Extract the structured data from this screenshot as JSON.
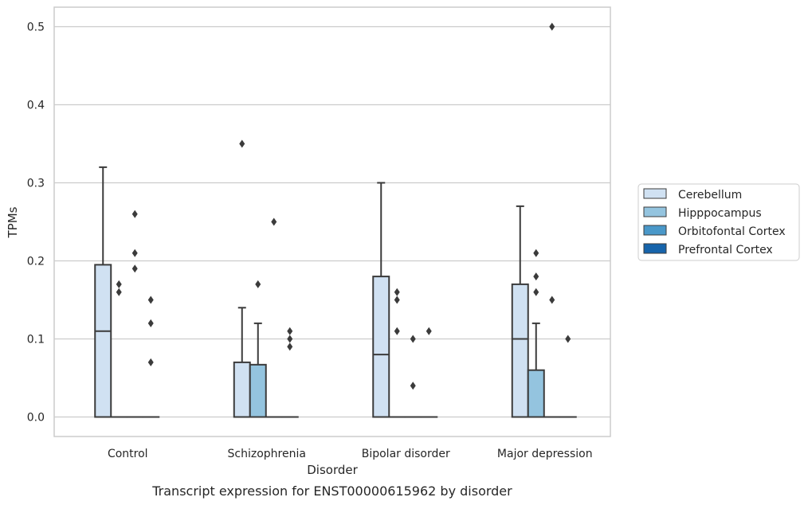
{
  "chart_data": {
    "type": "box",
    "title": "",
    "caption": "Transcript expression for ENST00000615962 by disorder",
    "xlabel": "Disorder",
    "ylabel": "TPMs",
    "ylim": [
      -0.025,
      0.525
    ],
    "yticks": [
      0.0,
      0.1,
      0.2,
      0.3,
      0.4,
      0.5
    ],
    "ytick_labels": [
      "0.0",
      "0.1",
      "0.2",
      "0.3",
      "0.4",
      "0.5"
    ],
    "grid": "horizontal",
    "legend_position": "right",
    "categories": [
      "Control",
      "Schizophrenia",
      "Bipolar disorder",
      "Major depression"
    ],
    "series": [
      {
        "name": "Cerebellum",
        "color": "#d0e1f2",
        "boxes": [
          {
            "q1": 0.0,
            "median": 0.11,
            "q3": 0.195,
            "whislo": 0.0,
            "whishi": 0.32,
            "fliers": []
          },
          {
            "q1": 0.0,
            "median": 0.0,
            "q3": 0.07,
            "whislo": 0.0,
            "whishi": 0.14,
            "fliers": [
              0.35
            ]
          },
          {
            "q1": 0.0,
            "median": 0.08,
            "q3": 0.18,
            "whislo": 0.0,
            "whishi": 0.3,
            "fliers": []
          },
          {
            "q1": 0.0,
            "median": 0.1,
            "q3": 0.17,
            "whislo": 0.0,
            "whishi": 0.27,
            "fliers": []
          }
        ]
      },
      {
        "name": "Hipppocampus",
        "color": "#94c4df",
        "boxes": [
          {
            "q1": 0.0,
            "median": 0.0,
            "q3": 0.0,
            "whislo": 0.0,
            "whishi": 0.0,
            "fliers": [
              0.17,
              0.16
            ]
          },
          {
            "q1": 0.0,
            "median": 0.0,
            "q3": 0.067,
            "whislo": 0.0,
            "whishi": 0.12,
            "fliers": [
              0.17
            ]
          },
          {
            "q1": 0.0,
            "median": 0.0,
            "q3": 0.0,
            "whislo": 0.0,
            "whishi": 0.0,
            "fliers": [
              0.16,
              0.15,
              0.11
            ]
          },
          {
            "q1": 0.0,
            "median": 0.0,
            "q3": 0.06,
            "whislo": 0.0,
            "whishi": 0.12,
            "fliers": [
              0.21,
              0.18,
              0.16
            ]
          }
        ]
      },
      {
        "name": "Orbitofontal Cortex",
        "color": "#4a98c9",
        "boxes": [
          {
            "q1": 0.0,
            "median": 0.0,
            "q3": 0.0,
            "whislo": 0.0,
            "whishi": 0.0,
            "fliers": [
              0.26,
              0.21,
              0.19
            ]
          },
          {
            "q1": 0.0,
            "median": 0.0,
            "q3": 0.0,
            "whislo": 0.0,
            "whishi": 0.0,
            "fliers": [
              0.25
            ]
          },
          {
            "q1": 0.0,
            "median": 0.0,
            "q3": 0.0,
            "whislo": 0.0,
            "whishi": 0.0,
            "fliers": [
              0.1,
              0.04
            ]
          },
          {
            "q1": 0.0,
            "median": 0.0,
            "q3": 0.0,
            "whislo": 0.0,
            "whishi": 0.0,
            "fliers": [
              0.5,
              0.15
            ]
          }
        ]
      },
      {
        "name": "Prefrontal Cortex",
        "color": "#1764ab",
        "boxes": [
          {
            "q1": 0.0,
            "median": 0.0,
            "q3": 0.0,
            "whislo": 0.0,
            "whishi": 0.0,
            "fliers": [
              0.15,
              0.12,
              0.07
            ]
          },
          {
            "q1": 0.0,
            "median": 0.0,
            "q3": 0.0,
            "whislo": 0.0,
            "whishi": 0.0,
            "fliers": [
              0.11,
              0.1,
              0.09
            ]
          },
          {
            "q1": 0.0,
            "median": 0.0,
            "q3": 0.0,
            "whislo": 0.0,
            "whishi": 0.0,
            "fliers": [
              0.11
            ]
          },
          {
            "q1": 0.0,
            "median": 0.0,
            "q3": 0.0,
            "whislo": 0.0,
            "whishi": 0.0,
            "fliers": [
              0.1
            ]
          }
        ]
      }
    ]
  }
}
